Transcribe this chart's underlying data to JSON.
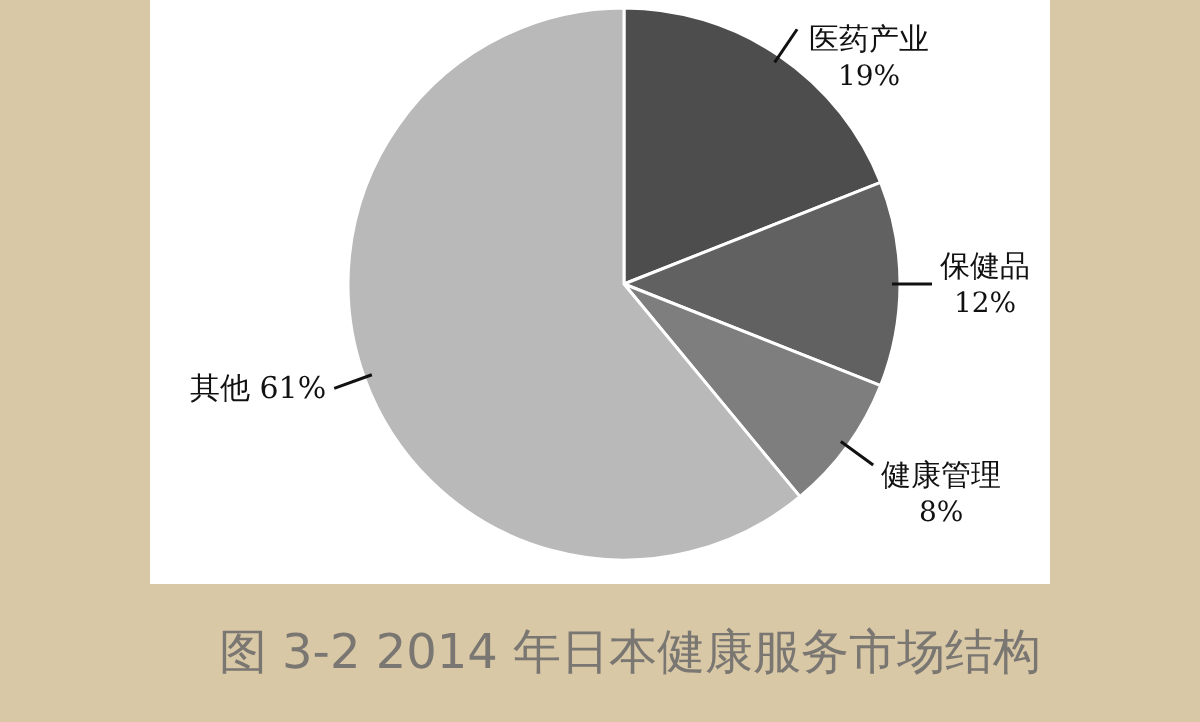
{
  "chart_data": {
    "type": "pie",
    "title": "图 3-2 2014 年日本健康服务市场结构",
    "categories": [
      "医药产业",
      "保健品",
      "健康管理",
      "其他"
    ],
    "values": [
      19,
      12,
      8,
      61
    ],
    "value_labels": [
      "19%",
      "12%",
      "8%",
      "61%"
    ],
    "colors": [
      "#4d4d4d",
      "#616161",
      "#7e7e7e",
      "#b9b9b9"
    ]
  }
}
